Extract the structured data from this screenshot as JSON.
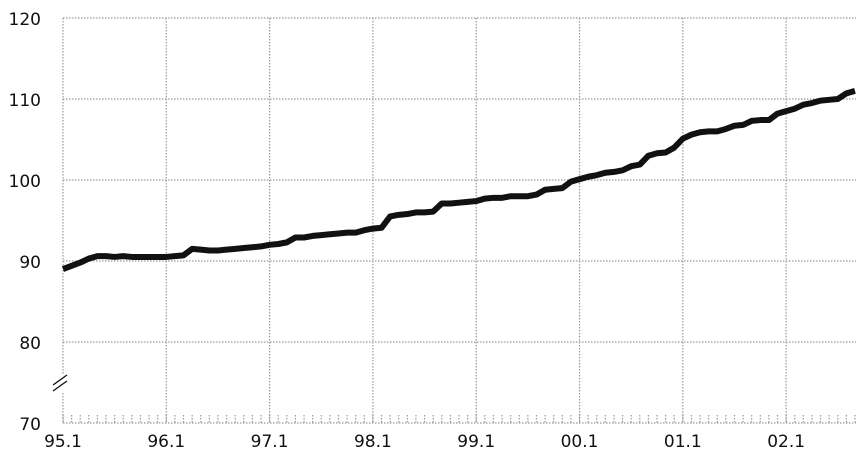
{
  "chart_data": {
    "type": "line",
    "categories": [
      "95.1",
      null,
      null,
      null,
      null,
      null,
      null,
      null,
      null,
      null,
      null,
      null,
      "96.1",
      null,
      null,
      null,
      null,
      null,
      null,
      null,
      null,
      null,
      null,
      null,
      "97.1",
      null,
      null,
      null,
      null,
      null,
      null,
      null,
      null,
      null,
      null,
      null,
      "98.1",
      null,
      null,
      null,
      null,
      null,
      null,
      null,
      null,
      null,
      null,
      null,
      "99.1",
      null,
      null,
      null,
      null,
      null,
      null,
      null,
      null,
      null,
      null,
      null,
      "00.1",
      null,
      null,
      null,
      null,
      null,
      null,
      null,
      null,
      null,
      null,
      null,
      "01.1",
      null,
      null,
      null,
      null,
      null,
      null,
      null,
      null,
      null,
      null,
      null,
      "02.1",
      null,
      null,
      null,
      null,
      null,
      null,
      null,
      null
    ],
    "values": [
      89.0,
      89.4,
      89.8,
      90.3,
      90.6,
      90.6,
      90.5,
      90.6,
      90.5,
      90.5,
      90.5,
      90.5,
      90.5,
      90.6,
      90.7,
      91.5,
      91.4,
      91.3,
      91.3,
      91.4,
      91.5,
      91.6,
      91.7,
      91.8,
      92.0,
      92.1,
      92.3,
      92.9,
      92.9,
      93.1,
      93.2,
      93.3,
      93.4,
      93.5,
      93.5,
      93.8,
      94.0,
      94.1,
      95.5,
      95.7,
      95.8,
      96.0,
      96.0,
      96.1,
      97.1,
      97.1,
      97.2,
      97.3,
      97.4,
      97.7,
      97.8,
      97.8,
      98.0,
      98.0,
      98.0,
      98.2,
      98.8,
      98.9,
      99.0,
      99.8,
      100.1,
      100.4,
      100.6,
      100.9,
      101.0,
      101.2,
      101.7,
      101.9,
      103.0,
      103.3,
      103.4,
      104.0,
      105.1,
      105.6,
      105.9,
      106.0,
      106.0,
      106.3,
      106.7,
      106.8,
      107.3,
      107.4,
      107.4,
      108.2,
      108.5,
      108.8,
      109.3,
      109.5,
      109.8,
      109.9,
      110.0,
      110.7,
      111.0
    ],
    "color": "#111111",
    "ylim": [
      70,
      120
    ],
    "yticks": [
      70,
      80,
      90,
      100,
      110,
      120
    ],
    "grid": true
  }
}
